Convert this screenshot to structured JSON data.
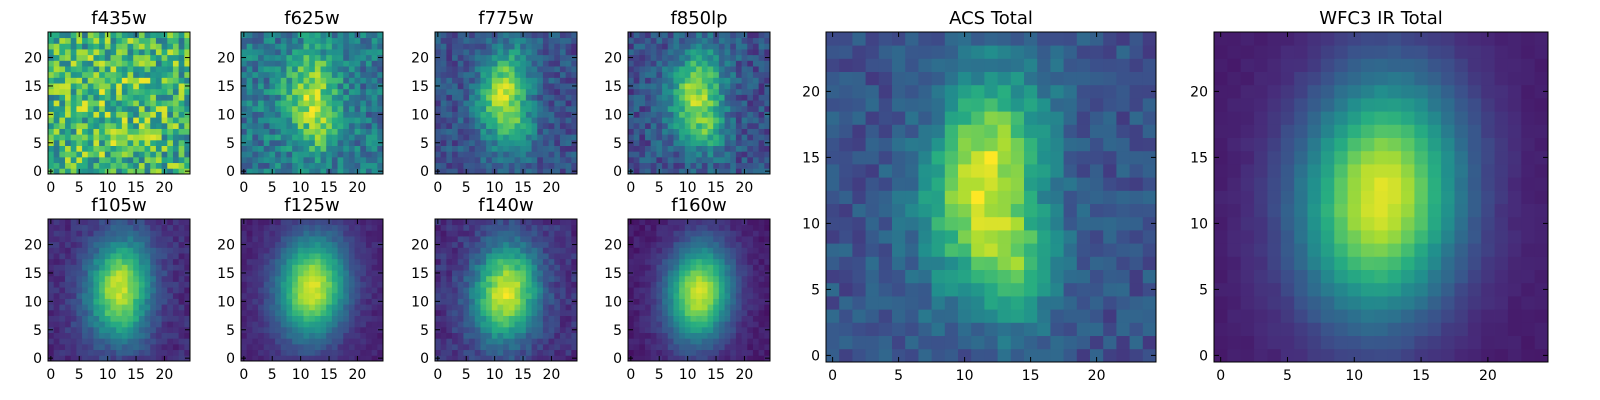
{
  "chart_data": {
    "type": "heatmap",
    "colormap": "viridis",
    "grid_size": 25,
    "panels": [
      {
        "id": "f435w",
        "title": "f435w",
        "xticks": [
          0,
          5,
          10,
          15,
          20
        ],
        "yticks": [
          0,
          5,
          10,
          15,
          20
        ],
        "cx": 12,
        "cy": 12,
        "sx": 8,
        "sy": 9,
        "rot": 0,
        "peak": 0.1,
        "bg": 0.62,
        "noise": 0.28,
        "tail": 0
      },
      {
        "id": "f625w",
        "title": "f625w",
        "xticks": [
          0,
          5,
          10,
          15,
          20
        ],
        "yticks": [
          0,
          5,
          10,
          15,
          20
        ],
        "cx": 11.5,
        "cy": 14,
        "sx": 3.2,
        "sy": 5.5,
        "rot": 0.18,
        "peak": 0.45,
        "bg": 0.4,
        "noise": 0.17,
        "tail": 0.25
      },
      {
        "id": "f775w",
        "title": "f775w",
        "xticks": [
          0,
          5,
          10,
          15,
          20
        ],
        "yticks": [
          0,
          5,
          10,
          15,
          20
        ],
        "cx": 11.5,
        "cy": 14,
        "sx": 3,
        "sy": 5.5,
        "rot": 0.18,
        "peak": 0.62,
        "bg": 0.25,
        "noise": 0.12,
        "tail": 0.3
      },
      {
        "id": "f850lp",
        "title": "f850lp",
        "xticks": [
          0,
          5,
          10,
          15,
          20
        ],
        "yticks": [
          0,
          5,
          10,
          15,
          20
        ],
        "cx": 11.5,
        "cy": 14,
        "sx": 3.2,
        "sy": 5.5,
        "rot": 0.18,
        "peak": 0.6,
        "bg": 0.25,
        "noise": 0.13,
        "tail": 0.3
      },
      {
        "id": "f105w",
        "title": "f105w",
        "xticks": [
          0,
          5,
          10,
          15,
          20
        ],
        "yticks": [
          0,
          5,
          10,
          15,
          20
        ],
        "cx": 12,
        "cy": 12.5,
        "sx": 3.8,
        "sy": 6,
        "rot": 0.12,
        "peak": 0.8,
        "bg": 0.13,
        "noise": 0.06,
        "tail": 0.1
      },
      {
        "id": "f125w",
        "title": "f125w",
        "xticks": [
          0,
          5,
          10,
          15,
          20
        ],
        "yticks": [
          0,
          5,
          10,
          15,
          20
        ],
        "cx": 12,
        "cy": 12.5,
        "sx": 4.2,
        "sy": 6.2,
        "rot": 0.1,
        "peak": 0.85,
        "bg": 0.1,
        "noise": 0.04,
        "tail": 0
      },
      {
        "id": "f140w",
        "title": "f140w",
        "xticks": [
          0,
          5,
          10,
          15,
          20
        ],
        "yticks": [
          0,
          5,
          10,
          15,
          20
        ],
        "cx": 12,
        "cy": 11.5,
        "sx": 4,
        "sy": 6,
        "rot": 0.1,
        "peak": 0.82,
        "bg": 0.14,
        "noise": 0.07,
        "tail": 0
      },
      {
        "id": "f160w",
        "title": "f160w",
        "xticks": [
          0,
          5,
          10,
          15,
          20
        ],
        "yticks": [
          0,
          5,
          10,
          15,
          20
        ],
        "cx": 12,
        "cy": 11.5,
        "sx": 4,
        "sy": 6,
        "rot": 0.1,
        "peak": 0.85,
        "bg": 0.08,
        "noise": 0.04,
        "tail": 0
      },
      {
        "id": "acs-total",
        "title": "ACS Total",
        "xticks": [
          0,
          5,
          10,
          15,
          20
        ],
        "yticks": [
          0,
          5,
          10,
          15,
          20
        ],
        "cx": 11.5,
        "cy": 13.5,
        "sx": 3,
        "sy": 5.5,
        "rot": 0.18,
        "peak": 0.68,
        "bg": 0.26,
        "noise": 0.09,
        "tail": 0.35
      },
      {
        "id": "wfc3-ir-total",
        "title": "WFC3 IR Total",
        "xticks": [
          0,
          5,
          10,
          15,
          20
        ],
        "yticks": [
          0,
          5,
          10,
          15,
          20
        ],
        "cx": 12,
        "cy": 12,
        "sx": 4.2,
        "sy": 6.4,
        "rot": 0.1,
        "peak": 0.88,
        "bg": 0.08,
        "noise": 0.015,
        "tail": 0
      }
    ]
  }
}
